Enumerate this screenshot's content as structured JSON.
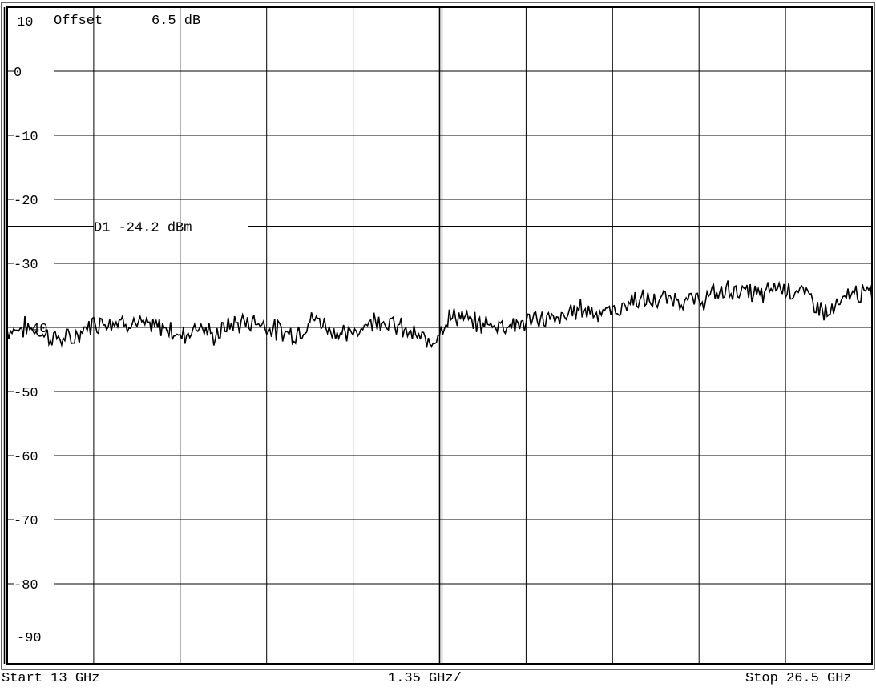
{
  "header": {
    "top_value": "10",
    "offset_text": "Offset",
    "offset_value": "6.5 dB"
  },
  "footer": {
    "start_label": "Start 13 GHz",
    "div_label": "1.35 GHz/",
    "stop_label": "Stop 26.5 GHz"
  },
  "chart_data": {
    "type": "line",
    "xlim": [
      13,
      26.5
    ],
    "x_unit": "GHz",
    "x_div": 1.35,
    "ylim": [
      -92.5,
      10
    ],
    "y_ticks": [
      0,
      -10,
      -20,
      -30,
      -40,
      -50,
      -60,
      -70,
      -80,
      -90
    ],
    "y_tick_labels": [
      "0",
      "-10",
      "-20",
      "-30",
      "-40",
      "-50",
      "-60",
      "-70",
      "-80",
      "-90"
    ],
    "y_tick_label_40_visible": "40",
    "grid": true,
    "display_line": {
      "label": "D1 -24.2 dBm",
      "value": -24.2
    },
    "series": [
      {
        "x": [
          13.0,
          13.3,
          13.7,
          14.0,
          14.3,
          14.5,
          14.9,
          15.2,
          15.5,
          15.7,
          16.0,
          16.2,
          16.5,
          16.9,
          17.2,
          17.5,
          17.8,
          18.1,
          18.3,
          18.5,
          18.8,
          19.2,
          19.5,
          19.6,
          19.8,
          20.0,
          20.3,
          20.7,
          21.0,
          21.3,
          21.6,
          21.9,
          22.2,
          22.5,
          22.8,
          23.0,
          23.4,
          23.8,
          24.0,
          24.3,
          24.5,
          24.8,
          25.0,
          25.2,
          25.4,
          25.6,
          25.8,
          26.0,
          26.2,
          26.5
        ],
        "y": [
          -40.5,
          -40.0,
          -41.5,
          -42.0,
          -39.5,
          -39.0,
          -39.0,
          -40.0,
          -40.0,
          -41.5,
          -39.5,
          -41.5,
          -39.5,
          -39.0,
          -40.5,
          -41.0,
          -38.5,
          -40.5,
          -41.5,
          -40.0,
          -38.5,
          -40.5,
          -42.0,
          -42.5,
          -39.5,
          -38.0,
          -39.5,
          -39.5,
          -39.5,
          -38.5,
          -39.0,
          -37.0,
          -37.5,
          -37.5,
          -35.5,
          -36.0,
          -35.5,
          -36.0,
          -35.0,
          -34.0,
          -34.5,
          -35.0,
          -33.5,
          -34.0,
          -34.5,
          -36.0,
          -38.0,
          -36.5,
          -34.5,
          -35.0
        ]
      }
    ]
  }
}
